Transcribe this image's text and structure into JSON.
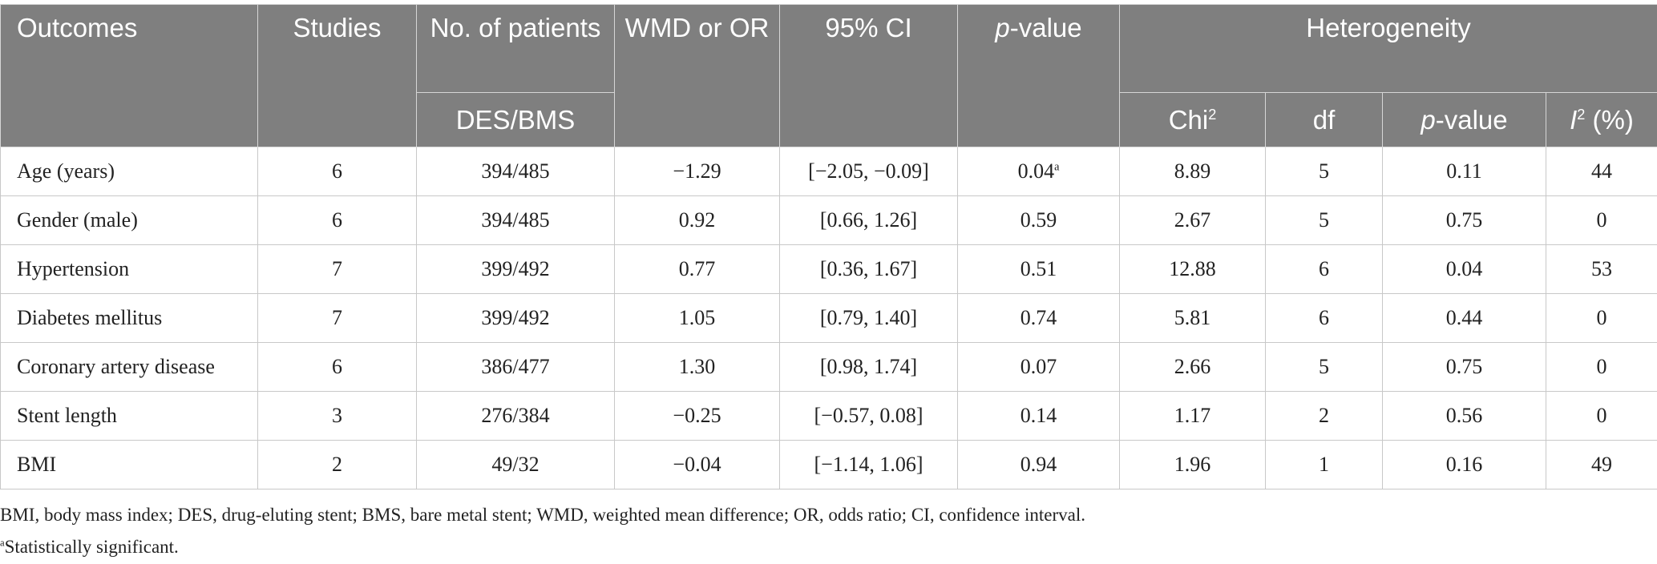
{
  "table": {
    "headers": {
      "outcomes": "Outcomes",
      "studies": "Studies",
      "patients": "No. of patients",
      "patients_sub": "DES/BMS",
      "wmd_or": "WMD or OR",
      "ci": "95% CI",
      "p_italic": "p",
      "p_suffix": "-value",
      "heterogeneity": "Heterogeneity",
      "chi_base": "Chi",
      "chi_sup": "2",
      "df": "df",
      "het_p_italic": "p",
      "het_p_suffix": "-value",
      "i2_base": "I",
      "i2_sup": "2",
      "i2_suffix": " (%)"
    },
    "rows": [
      {
        "outcome": "Age (years)",
        "studies": "6",
        "patients": "394/485",
        "wmd_or": "−1.29",
        "ci": "[−2.05, −0.09]",
        "p": "0.04",
        "p_note": "a",
        "chi2": "8.89",
        "df": "5",
        "het_p": "0.11",
        "i2": "44"
      },
      {
        "outcome": "Gender (male)",
        "studies": "6",
        "patients": "394/485",
        "wmd_or": "0.92",
        "ci": "[0.66, 1.26]",
        "p": "0.59",
        "p_note": "",
        "chi2": "2.67",
        "df": "5",
        "het_p": "0.75",
        "i2": "0"
      },
      {
        "outcome": "Hypertension",
        "studies": "7",
        "patients": "399/492",
        "wmd_or": "0.77",
        "ci": "[0.36, 1.67]",
        "p": "0.51",
        "p_note": "",
        "chi2": "12.88",
        "df": "6",
        "het_p": "0.04",
        "i2": "53"
      },
      {
        "outcome": "Diabetes mellitus",
        "studies": "7",
        "patients": "399/492",
        "wmd_or": "1.05",
        "ci": "[0.79, 1.40]",
        "p": "0.74",
        "p_note": "",
        "chi2": "5.81",
        "df": "6",
        "het_p": "0.44",
        "i2": "0"
      },
      {
        "outcome": "Coronary artery disease",
        "studies": "6",
        "patients": "386/477",
        "wmd_or": "1.30",
        "ci": "[0.98, 1.74]",
        "p": "0.07",
        "p_note": "",
        "chi2": "2.66",
        "df": "5",
        "het_p": "0.75",
        "i2": "0"
      },
      {
        "outcome": "Stent length",
        "studies": "3",
        "patients": "276/384",
        "wmd_or": "−0.25",
        "ci": "[−0.57, 0.08]",
        "p": "0.14",
        "p_note": "",
        "chi2": "1.17",
        "df": "2",
        "het_p": "0.56",
        "i2": "0"
      },
      {
        "outcome": "BMI",
        "studies": "2",
        "patients": "49/32",
        "wmd_or": "−0.04",
        "ci": "[−1.14, 1.06]",
        "p": "0.94",
        "p_note": "",
        "chi2": "1.96",
        "df": "1",
        "het_p": "0.16",
        "i2": "49"
      }
    ]
  },
  "footnotes": {
    "abbreviations": "BMI, body mass index; DES, drug-eluting stent; BMS, bare metal stent; WMD, weighted mean difference; OR, odds ratio; CI, confidence interval.",
    "sig_mark": "a",
    "sig_text": "Statistically significant."
  }
}
